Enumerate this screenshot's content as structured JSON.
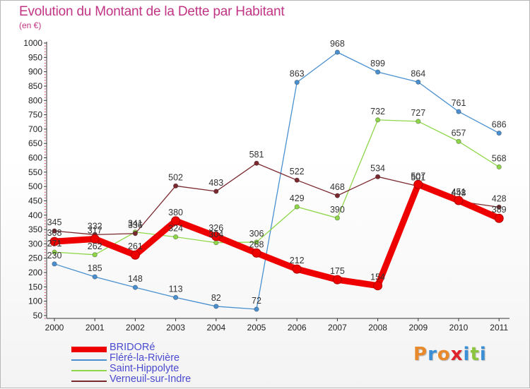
{
  "title": "Evolution du Montant de la Dette par Habitant",
  "subtitle": "(en €)",
  "logo": {
    "text": "Proxiti",
    "letter_colors": [
      "#e8892b",
      "#3a8fd6",
      "#e8892b",
      "#e0222c",
      "#3a8fd6",
      "#8cc63f",
      "#3a8fd6"
    ]
  },
  "chart_data": {
    "type": "line",
    "title": "Evolution du Montant de la Dette par Habitant",
    "ylabel": "(en €)",
    "xlabel": "",
    "x": [
      "2000",
      "2001",
      "2002",
      "2003",
      "2004",
      "2005",
      "2006",
      "2007",
      "2008",
      "2009",
      "2010",
      "2011"
    ],
    "ylim": [
      50,
      1000
    ],
    "yticks": [
      50,
      100,
      150,
      200,
      250,
      300,
      350,
      400,
      450,
      500,
      550,
      600,
      650,
      700,
      750,
      800,
      850,
      900,
      950,
      1000
    ],
    "grid": false,
    "legend_position": "bottom-left",
    "series": [
      {
        "name": "BRIDORé",
        "color": "#ee0000",
        "values": [
          308,
          317,
          261,
          380,
          326,
          268,
          212,
          175,
          154,
          507,
          451,
          389
        ],
        "labels": [
          "308",
          "317",
          "261",
          "380",
          "326",
          "268",
          "212",
          "175",
          "154",
          "507",
          "451",
          "389"
        ]
      },
      {
        "name": "Fléré-la-Rivière",
        "color": "#4a90d0",
        "values": [
          230,
          185,
          148,
          113,
          82,
          72,
          863,
          968,
          899,
          864,
          761,
          686
        ],
        "labels": [
          "230",
          "185",
          "148",
          "113",
          "82",
          "72",
          "863",
          "968",
          "899",
          "864",
          "761",
          "686"
        ]
      },
      {
        "name": "Saint-Hippolyte",
        "color": "#8fd64a",
        "values": [
          271,
          262,
          341,
          324,
          304,
          306,
          429,
          390,
          732,
          727,
          657,
          568
        ],
        "labels": [
          "271",
          "262",
          "341",
          "324",
          "304",
          "306",
          "429",
          "390",
          "732",
          "727",
          "657",
          "568"
        ]
      },
      {
        "name": "Verneuil-sur-Indre",
        "color": "#7a2a2f",
        "values": [
          345,
          332,
          336,
          502,
          483,
          581,
          522,
          468,
          534,
          501,
          448,
          428
        ],
        "labels": [
          "345",
          "332",
          "336",
          "502",
          "483",
          "581",
          "522",
          "468",
          "534",
          "501",
          "448",
          "428"
        ]
      }
    ]
  }
}
